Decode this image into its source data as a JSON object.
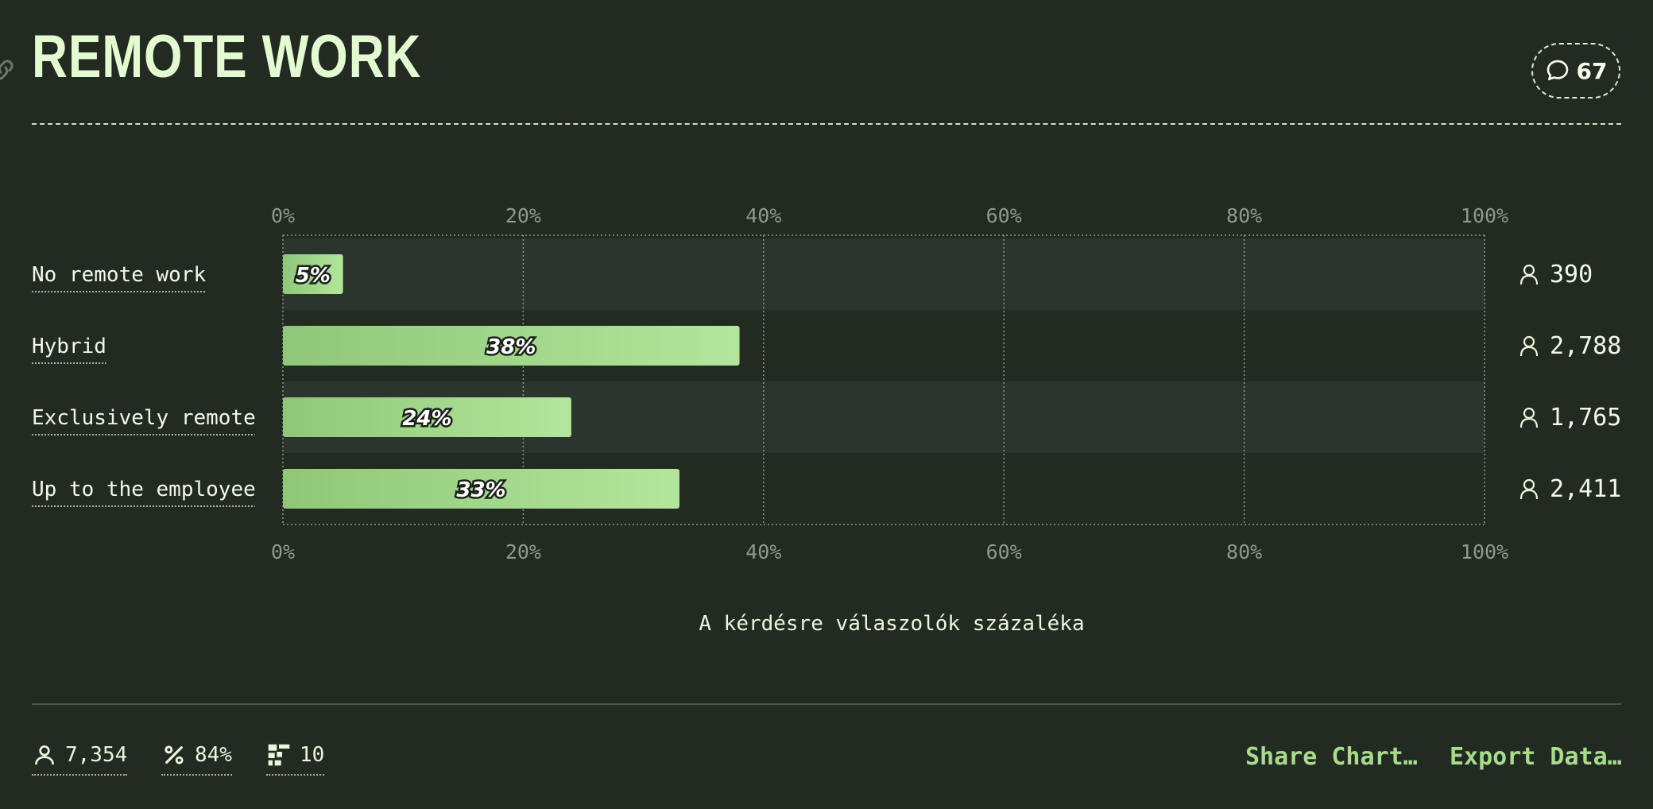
{
  "header": {
    "title": "REMOTE WORK",
    "comment_count": "67"
  },
  "chart_data": {
    "type": "bar",
    "orientation": "horizontal",
    "categories": [
      "No remote work",
      "Hybrid",
      "Exclusively remote",
      "Up to the employee"
    ],
    "values": [
      5,
      38,
      24,
      33
    ],
    "value_labels": [
      "5%",
      "38%",
      "24%",
      "33%"
    ],
    "respondents": [
      "390",
      "2,788",
      "1,765",
      "2,411"
    ],
    "xlim": [
      0,
      100
    ],
    "xticks": [
      "0%",
      "20%",
      "40%",
      "60%",
      "80%",
      "100%"
    ],
    "xlabel": "A kérdésre válaszolók százaléka",
    "grid": true,
    "colors": {
      "bar_start": "#8fc778",
      "bar_end": "#b2e69c",
      "band_alt": "#2b352e",
      "grid": "#8d9988",
      "tick_text": "#8f9a8b"
    }
  },
  "footer": {
    "respondents": "7,354",
    "percent": "84%",
    "questions": "10",
    "share_label": "Share Chart…",
    "export_label": "Export Data…"
  }
}
